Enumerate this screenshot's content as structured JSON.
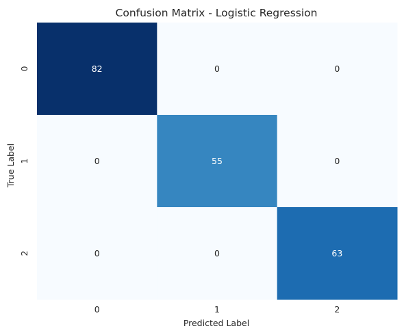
{
  "chart_data": {
    "type": "heatmap",
    "title": "Confusion Matrix - Logistic Regression",
    "xlabel": "Predicted Label",
    "ylabel": "True Label",
    "x_categories": [
      "0",
      "1",
      "2"
    ],
    "y_categories": [
      "0",
      "1",
      "2"
    ],
    "values": [
      [
        82,
        0,
        0
      ],
      [
        0,
        55,
        0
      ],
      [
        0,
        0,
        63
      ]
    ],
    "colormap": "Blues",
    "color_range": [
      0,
      82
    ],
    "grid": false,
    "legend": "none"
  }
}
